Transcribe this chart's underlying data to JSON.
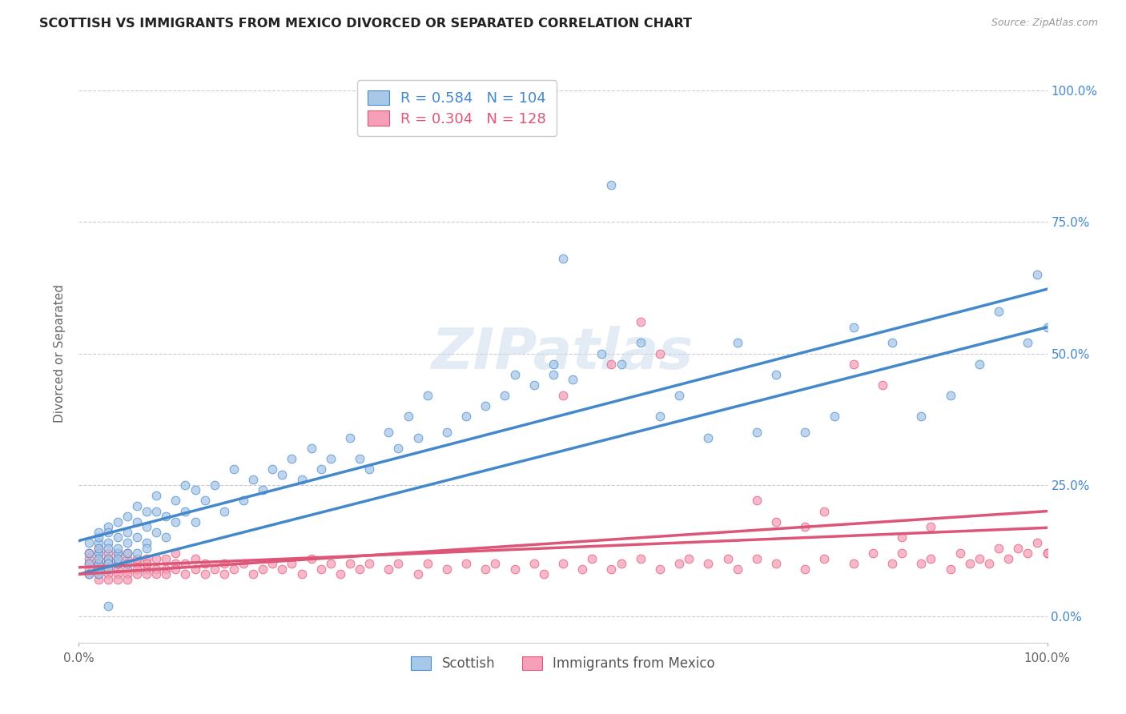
{
  "title": "SCOTTISH VS IMMIGRANTS FROM MEXICO DIVORCED OR SEPARATED CORRELATION CHART",
  "source": "Source: ZipAtlas.com",
  "ylabel": "Divorced or Separated",
  "xlim": [
    0.0,
    1.0
  ],
  "ylim": [
    -0.05,
    1.05
  ],
  "xtick_labels": [
    "0.0%",
    "100.0%"
  ],
  "ytick_labels": [
    "0.0%",
    "25.0%",
    "50.0%",
    "75.0%",
    "100.0%"
  ],
  "ytick_values": [
    0.0,
    0.25,
    0.5,
    0.75,
    1.0
  ],
  "scottish_color": "#a8c8e8",
  "mexico_color": "#f5a0b8",
  "scottish_line_color": "#4488cc",
  "mexico_line_color": "#dd5577",
  "R_scottish": 0.584,
  "N_scottish": 104,
  "R_mexico": 0.304,
  "N_mexico": 128,
  "legend_scottish": "Scottish",
  "legend_mexico": "Immigrants from Mexico",
  "watermark": "ZIPatlas",
  "background_color": "#ffffff",
  "grid_color": "#cccccc",
  "title_color": "#222222",
  "scottish_x": [
    0.01,
    0.01,
    0.01,
    0.01,
    0.02,
    0.02,
    0.02,
    0.02,
    0.02,
    0.02,
    0.02,
    0.02,
    0.02,
    0.03,
    0.03,
    0.03,
    0.03,
    0.03,
    0.03,
    0.03,
    0.04,
    0.04,
    0.04,
    0.04,
    0.04,
    0.04,
    0.05,
    0.05,
    0.05,
    0.05,
    0.05,
    0.06,
    0.06,
    0.06,
    0.06,
    0.07,
    0.07,
    0.07,
    0.07,
    0.08,
    0.08,
    0.08,
    0.09,
    0.09,
    0.1,
    0.1,
    0.11,
    0.11,
    0.12,
    0.12,
    0.13,
    0.14,
    0.15,
    0.16,
    0.17,
    0.18,
    0.19,
    0.2,
    0.21,
    0.22,
    0.23,
    0.24,
    0.25,
    0.26,
    0.28,
    0.29,
    0.3,
    0.32,
    0.33,
    0.34,
    0.35,
    0.36,
    0.38,
    0.4,
    0.42,
    0.44,
    0.45,
    0.47,
    0.49,
    0.51,
    0.54,
    0.56,
    0.58,
    0.6,
    0.62,
    0.65,
    0.68,
    0.7,
    0.72,
    0.75,
    0.78,
    0.8,
    0.84,
    0.87,
    0.9,
    0.93,
    0.95,
    0.98,
    0.99,
    1.0,
    0.03,
    0.55,
    0.5,
    0.49
  ],
  "scottish_y": [
    0.1,
    0.12,
    0.08,
    0.14,
    0.1,
    0.12,
    0.14,
    0.08,
    0.11,
    0.15,
    0.13,
    0.09,
    0.16,
    0.11,
    0.14,
    0.1,
    0.17,
    0.13,
    0.09,
    0.16,
    0.12,
    0.15,
    0.1,
    0.18,
    0.13,
    0.11,
    0.14,
    0.16,
    0.12,
    0.19,
    0.1,
    0.15,
    0.18,
    0.12,
    0.21,
    0.14,
    0.17,
    0.2,
    0.13,
    0.16,
    0.2,
    0.23,
    0.15,
    0.19,
    0.18,
    0.22,
    0.2,
    0.25,
    0.18,
    0.24,
    0.22,
    0.25,
    0.2,
    0.28,
    0.22,
    0.26,
    0.24,
    0.28,
    0.27,
    0.3,
    0.26,
    0.32,
    0.28,
    0.3,
    0.34,
    0.3,
    0.28,
    0.35,
    0.32,
    0.38,
    0.34,
    0.42,
    0.35,
    0.38,
    0.4,
    0.42,
    0.46,
    0.44,
    0.48,
    0.45,
    0.5,
    0.48,
    0.52,
    0.38,
    0.42,
    0.34,
    0.52,
    0.35,
    0.46,
    0.35,
    0.38,
    0.55,
    0.52,
    0.38,
    0.42,
    0.48,
    0.58,
    0.52,
    0.65,
    0.55,
    0.02,
    0.82,
    0.68,
    0.46
  ],
  "mexico_x": [
    0.01,
    0.01,
    0.01,
    0.01,
    0.01,
    0.02,
    0.02,
    0.02,
    0.02,
    0.02,
    0.02,
    0.02,
    0.02,
    0.03,
    0.03,
    0.03,
    0.03,
    0.03,
    0.03,
    0.04,
    0.04,
    0.04,
    0.04,
    0.04,
    0.04,
    0.05,
    0.05,
    0.05,
    0.05,
    0.05,
    0.06,
    0.06,
    0.06,
    0.06,
    0.07,
    0.07,
    0.07,
    0.07,
    0.08,
    0.08,
    0.08,
    0.09,
    0.09,
    0.09,
    0.1,
    0.1,
    0.1,
    0.11,
    0.11,
    0.12,
    0.12,
    0.13,
    0.13,
    0.14,
    0.15,
    0.15,
    0.16,
    0.17,
    0.18,
    0.19,
    0.2,
    0.21,
    0.22,
    0.23,
    0.24,
    0.25,
    0.26,
    0.27,
    0.28,
    0.29,
    0.3,
    0.32,
    0.33,
    0.35,
    0.36,
    0.38,
    0.4,
    0.42,
    0.43,
    0.45,
    0.47,
    0.48,
    0.5,
    0.52,
    0.53,
    0.55,
    0.56,
    0.58,
    0.6,
    0.62,
    0.63,
    0.65,
    0.67,
    0.68,
    0.7,
    0.72,
    0.75,
    0.77,
    0.8,
    0.82,
    0.84,
    0.85,
    0.87,
    0.88,
    0.9,
    0.91,
    0.92,
    0.93,
    0.94,
    0.95,
    0.96,
    0.97,
    0.98,
    0.99,
    1.0,
    1.0,
    0.5,
    0.55,
    0.58,
    0.6,
    0.7,
    0.72,
    0.75,
    0.77,
    0.8,
    0.83,
    0.85,
    0.88
  ],
  "mexico_y": [
    0.1,
    0.12,
    0.08,
    0.11,
    0.09,
    0.1,
    0.13,
    0.08,
    0.11,
    0.09,
    0.12,
    0.07,
    0.1,
    0.09,
    0.11,
    0.08,
    0.12,
    0.07,
    0.1,
    0.09,
    0.11,
    0.08,
    0.12,
    0.07,
    0.1,
    0.09,
    0.11,
    0.08,
    0.12,
    0.07,
    0.1,
    0.09,
    0.11,
    0.08,
    0.09,
    0.11,
    0.08,
    0.1,
    0.09,
    0.11,
    0.08,
    0.09,
    0.11,
    0.08,
    0.1,
    0.09,
    0.12,
    0.08,
    0.1,
    0.09,
    0.11,
    0.08,
    0.1,
    0.09,
    0.08,
    0.1,
    0.09,
    0.1,
    0.08,
    0.09,
    0.1,
    0.09,
    0.1,
    0.08,
    0.11,
    0.09,
    0.1,
    0.08,
    0.1,
    0.09,
    0.1,
    0.09,
    0.1,
    0.08,
    0.1,
    0.09,
    0.1,
    0.09,
    0.1,
    0.09,
    0.1,
    0.08,
    0.1,
    0.09,
    0.11,
    0.09,
    0.1,
    0.11,
    0.09,
    0.1,
    0.11,
    0.1,
    0.11,
    0.09,
    0.11,
    0.1,
    0.09,
    0.11,
    0.1,
    0.12,
    0.1,
    0.12,
    0.1,
    0.11,
    0.09,
    0.12,
    0.1,
    0.11,
    0.1,
    0.13,
    0.11,
    0.13,
    0.12,
    0.14,
    0.12,
    0.12,
    0.42,
    0.48,
    0.56,
    0.5,
    0.22,
    0.18,
    0.17,
    0.2,
    0.48,
    0.44,
    0.15,
    0.17
  ],
  "scottish_line_start_y": 0.08,
  "scottish_line_end_y": 0.55,
  "mexico_line_start_y": 0.08,
  "mexico_line_end_y": 0.2
}
